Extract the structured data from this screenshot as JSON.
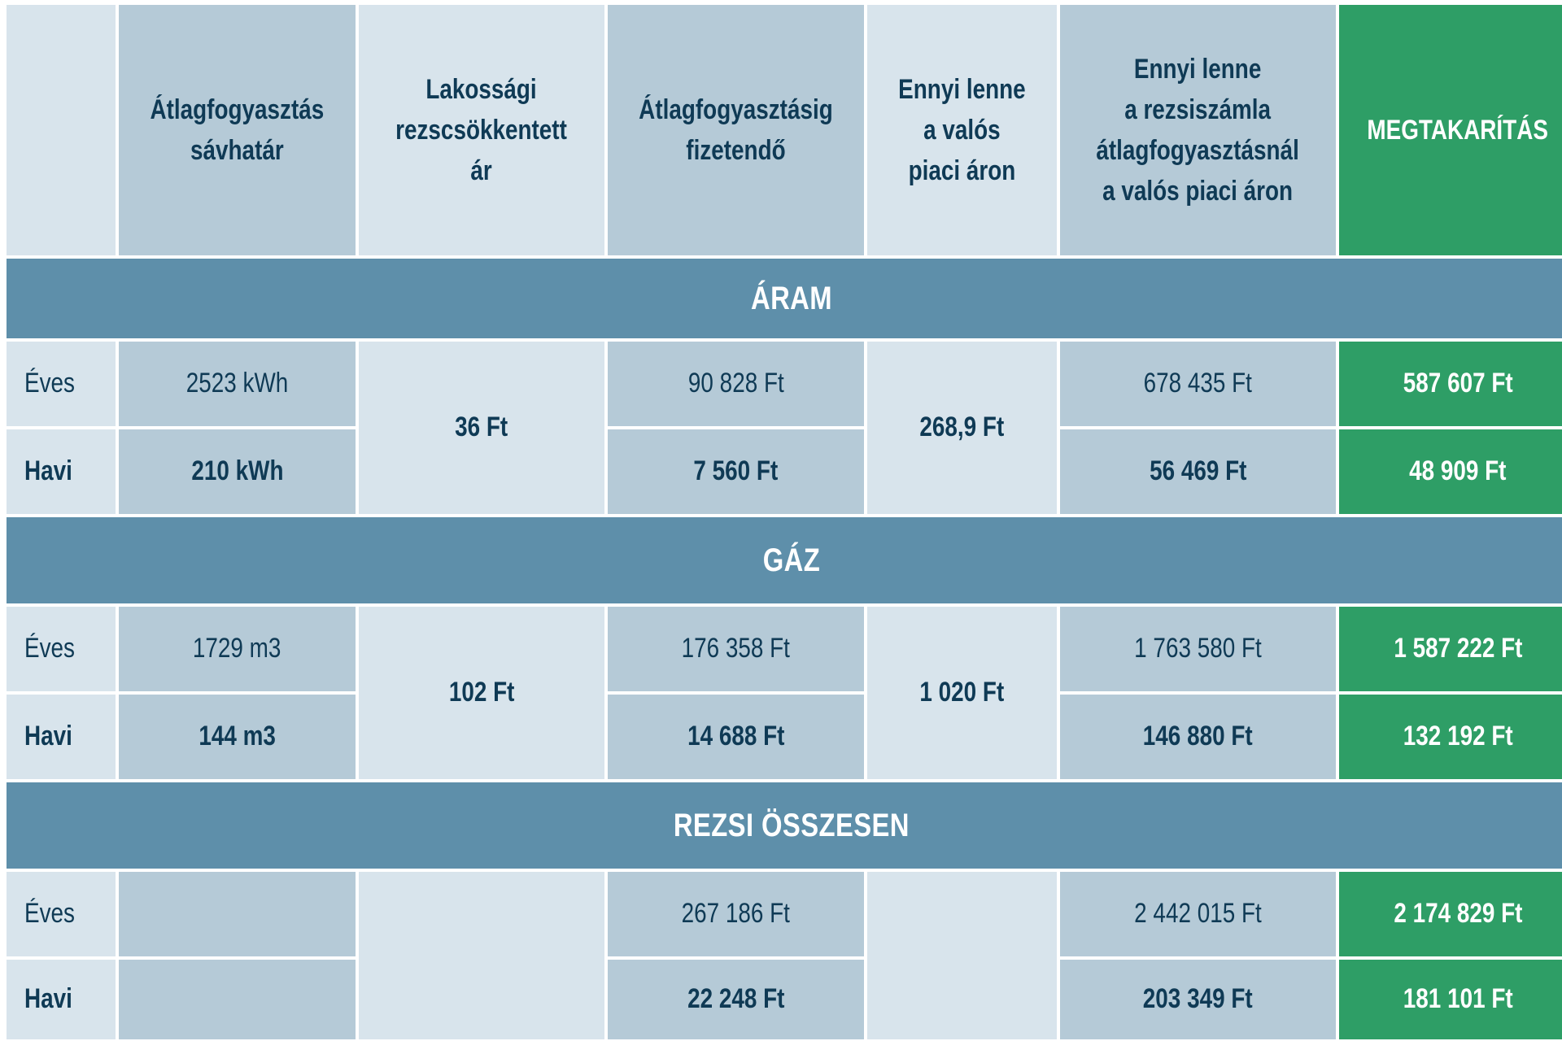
{
  "chart_data": {
    "type": "table",
    "columns": [
      "",
      "Átlagfogyasztás sávhatár",
      "Lakossági rezscsökkentett ár",
      "Átlagfogyasztásig fizetendő",
      "Ennyi lenne a valós piaci áron",
      "Ennyi lenne a rezsiszámla átlagfogyasztásnál a valós piaci áron",
      "MEGTAKARÍTÁS"
    ],
    "header_lines": [
      [],
      [
        "Átlagfogyasztás",
        "sávhatár"
      ],
      [
        "Lakossági",
        "rezscsökkentett",
        "ár"
      ],
      [
        "Átlagfogyasztásig",
        "fizetendő"
      ],
      [
        "Ennyi lenne",
        "a valós",
        "piaci áron"
      ],
      [
        "Ennyi lenne",
        "a rezsiszámla",
        "átlagfogyasztásnál",
        "a valós piaci áron"
      ],
      [
        "MEGTAKARÍTÁS"
      ]
    ],
    "sections": [
      {
        "title": "ÁRAM",
        "unit_price": "36 Ft",
        "market_price": "268,9 Ft",
        "rows": [
          {
            "label": "Éves",
            "consumption": "2523 kWh",
            "payable": "90 828 Ft",
            "market_bill": "678 435 Ft",
            "savings": "587 607 Ft"
          },
          {
            "label": "Havi",
            "consumption": "210 kWh",
            "payable": "7 560 Ft",
            "market_bill": "56 469 Ft",
            "savings": "48 909 Ft"
          }
        ]
      },
      {
        "title": "GÁZ",
        "unit_price": "102 Ft",
        "market_price": "1 020 Ft",
        "rows": [
          {
            "label": "Éves",
            "consumption": "1729 m3",
            "payable": "176 358 Ft",
            "market_bill": "1 763 580 Ft",
            "savings": "1 587 222 Ft"
          },
          {
            "label": "Havi",
            "consumption": "144 m3",
            "payable": "14 688 Ft",
            "market_bill": "146 880 Ft",
            "savings": "132 192 Ft"
          }
        ]
      },
      {
        "title": "REZSI ÖSSZESEN",
        "unit_price": "",
        "market_price": "",
        "rows": [
          {
            "label": "Éves",
            "consumption": "",
            "payable": "267 186 Ft",
            "market_bill": "2 442 015 Ft",
            "savings": "2 174 829 Ft"
          },
          {
            "label": "Havi",
            "consumption": "",
            "payable": "22 248 Ft",
            "market_bill": "203 349 Ft",
            "savings": "181 101 Ft"
          }
        ]
      }
    ]
  },
  "colors": {
    "light_cell": "#d8e4ec",
    "mid_cell": "#b5cad7",
    "savings_green": "#2e9e66",
    "section_band": "#5e8faa",
    "text_dark": "#0f3a55",
    "text_light": "#ffffff"
  }
}
